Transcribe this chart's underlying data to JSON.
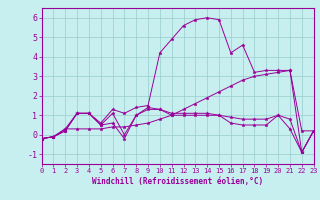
{
  "xlabel": "Windchill (Refroidissement éolien,°C)",
  "bg_color": "#c8efef",
  "line_color": "#990099",
  "grid_color": "#99cccc",
  "xlim": [
    0,
    23
  ],
  "ylim": [
    -1.5,
    6.5
  ],
  "xticks": [
    0,
    1,
    2,
    3,
    4,
    5,
    6,
    7,
    8,
    9,
    10,
    11,
    12,
    13,
    14,
    15,
    16,
    17,
    18,
    19,
    20,
    21,
    22,
    23
  ],
  "yticks": [
    -1,
    0,
    1,
    2,
    3,
    4,
    5,
    6
  ],
  "series": [
    [
      -0.2,
      -0.1,
      0.2,
      1.1,
      1.1,
      0.5,
      1.1,
      0.0,
      1.0,
      1.3,
      1.3,
      1.0,
      1.0,
      1.0,
      1.0,
      1.0,
      0.9,
      0.8,
      0.8,
      0.8,
      1.0,
      0.8,
      -0.9,
      0.2
    ],
    [
      -0.2,
      -0.1,
      0.2,
      1.1,
      1.1,
      0.5,
      0.6,
      -0.2,
      1.0,
      1.4,
      1.3,
      1.1,
      1.1,
      1.1,
      1.1,
      1.0,
      0.6,
      0.5,
      0.5,
      0.5,
      1.0,
      0.3,
      -0.9,
      0.2
    ],
    [
      -0.2,
      -0.1,
      0.3,
      1.1,
      1.1,
      0.6,
      1.3,
      1.1,
      1.4,
      1.5,
      4.2,
      4.9,
      5.6,
      5.9,
      6.0,
      5.9,
      4.2,
      4.6,
      3.2,
      3.3,
      3.3,
      3.3,
      -0.9,
      0.2
    ],
    [
      -0.2,
      -0.1,
      0.3,
      0.3,
      0.3,
      0.3,
      0.4,
      0.4,
      0.5,
      0.6,
      0.8,
      1.0,
      1.3,
      1.6,
      1.9,
      2.2,
      2.5,
      2.8,
      3.0,
      3.1,
      3.2,
      3.3,
      0.2,
      0.2
    ]
  ]
}
